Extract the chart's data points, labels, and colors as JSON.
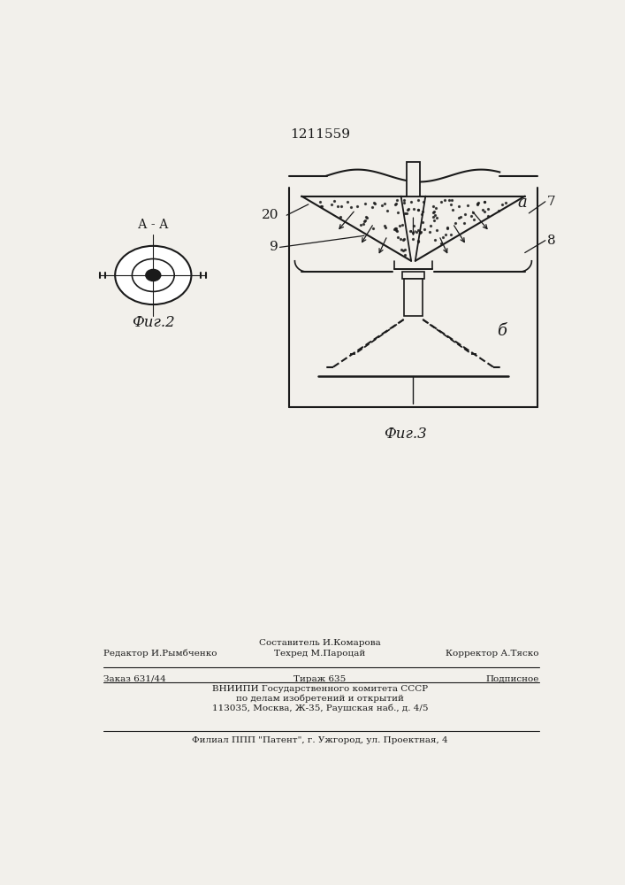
{
  "patent_number": "1211559",
  "fig2_label": "Фиг.2",
  "fig3_label": "Фиг.3",
  "aa_label": "А - А",
  "label_a": "а",
  "label_b": "б",
  "label_7": "7",
  "label_8": "8",
  "label_9": "9",
  "label_20": "20",
  "footer_editor": "Редактор И.Рымбченко",
  "footer_composer": "Составитель И.Комарова",
  "footer_techred": "Техред М.Пароцай",
  "footer_corrector": "Корректор А.Тяско",
  "footer_order": "Заказ 631/44",
  "footer_tirazh": "Тираж 635",
  "footer_podpisnoe": "Подписное",
  "footer_vniip1": "ВНИИПИ Государственного комитета СССР",
  "footer_vniip2": "по делам изобретений и открытий",
  "footer_vniip3": "113035, Москва, Ж-35, Раушская наб., д. 4/5",
  "footer_filial": "Филиал ППП \"Патент\", г. Ужгород, ул. Проектная, 4",
  "bg_color": "#f2f0eb",
  "line_color": "#1a1a1a",
  "text_color": "#1a1a1a"
}
